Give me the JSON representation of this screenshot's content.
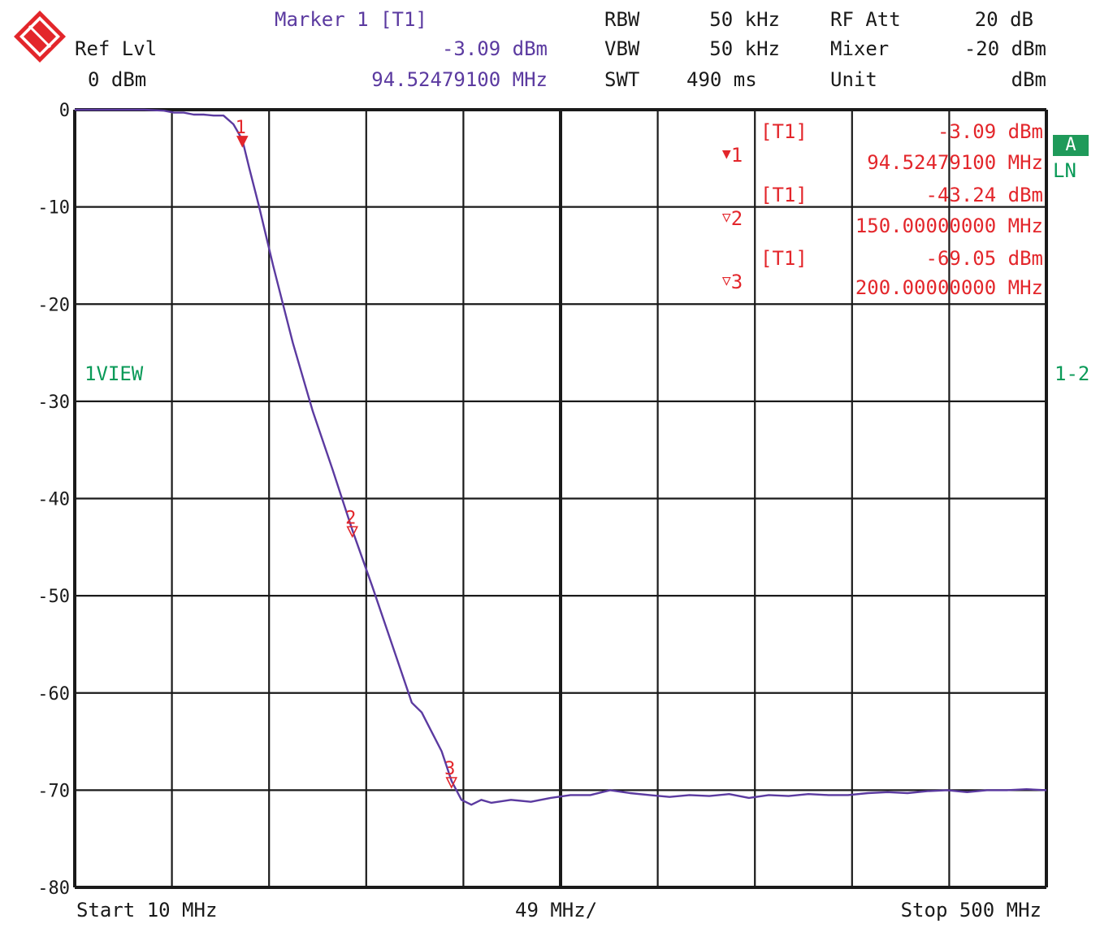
{
  "header": {
    "marker_title": "Marker 1 [T1]",
    "marker_level": "-3.09 dBm",
    "marker_freq": "94.52479100 MHz",
    "ref_lvl_label": "Ref Lvl",
    "ref_lvl_value": "0 dBm",
    "rbw_label": "RBW",
    "rbw_value": "50 kHz",
    "vbw_label": "VBW",
    "vbw_value": "50 kHz",
    "swt_label": "SWT",
    "swt_value": "490 ms",
    "rfatt_label": "RF Att",
    "rfatt_value": "20 dB",
    "mixer_label": "Mixer",
    "mixer_value": "-20 dBm",
    "unit_label": "Unit",
    "unit_value": "dBm"
  },
  "markers_table": [
    {
      "label": "1",
      "trace": "[T1]",
      "level": "-3.09 dBm",
      "freq": "94.52479100 MHz"
    },
    {
      "label": "2",
      "trace": "[T1]",
      "level": "-43.24 dBm",
      "freq": "150.00000000 MHz"
    },
    {
      "label": "3",
      "trace": "[T1]",
      "level": "-69.05 dBm",
      "freq": "200.00000000 MHz"
    }
  ],
  "side": {
    "badge": "A",
    "ln": "LN",
    "view": "1VIEW",
    "range": "1-2"
  },
  "footer": {
    "start": "Start 10 MHz",
    "span": "49 MHz/",
    "stop": "Stop 500 MHz"
  },
  "colors": {
    "trace": "#5b3aa0",
    "marker": "#e3262b",
    "grid": "#1a1a1a",
    "logo": "#e3262b",
    "accent": "#0a9a58"
  },
  "chart_data": {
    "type": "line",
    "title": "",
    "xlabel": "",
    "ylabel": "",
    "xlim": [
      10,
      500
    ],
    "ylim": [
      -80,
      0
    ],
    "x_step": 49,
    "y_step": 10,
    "yticks": [
      "0",
      "-10",
      "-20",
      "-30",
      "-40",
      "-50",
      "-60",
      "-70",
      "-80"
    ],
    "grid": true,
    "series": [
      {
        "x": [
          10,
          20,
          30,
          45,
          55,
          60,
          65,
          70,
          75,
          80,
          85,
          90,
          94.52,
          98,
          103,
          110,
          120,
          130,
          140,
          150,
          160,
          170,
          175,
          180,
          185,
          190,
          195,
          200,
          205,
          210,
          215,
          220,
          230,
          240,
          250,
          260,
          270,
          280,
          290,
          300,
          310,
          320,
          330,
          340,
          350,
          360,
          370,
          380,
          390,
          400,
          410,
          420,
          430,
          440,
          450,
          460,
          470,
          480,
          490,
          500
        ],
        "y": [
          0,
          0,
          0,
          0,
          -0.1,
          -0.3,
          -0.3,
          -0.5,
          -0.5,
          -0.6,
          -0.6,
          -1.5,
          -3.09,
          -6,
          -10,
          -16,
          -24,
          -31,
          -37,
          -43.24,
          -49,
          -55,
          -58,
          -61,
          -62,
          -64,
          -66,
          -69.05,
          -71,
          -71.5,
          -71,
          -71.3,
          -71,
          -71.2,
          -70.8,
          -70.5,
          -70.5,
          -70,
          -70.3,
          -70.5,
          -70.7,
          -70.5,
          -70.6,
          -70.4,
          -70.8,
          -70.5,
          -70.6,
          -70.4,
          -70.5,
          -70.5,
          -70.3,
          -70.2,
          -70.3,
          -70.1,
          -70,
          -70.2,
          -70,
          -70,
          -69.9,
          -70
        ]
      }
    ],
    "markers": [
      {
        "label": "1",
        "x": 94.52,
        "y": -3.09,
        "filled": true
      },
      {
        "label": "2",
        "x": 150,
        "y": -43.24,
        "filled": false
      },
      {
        "label": "3",
        "x": 200,
        "y": -69.05,
        "filled": false
      }
    ]
  }
}
